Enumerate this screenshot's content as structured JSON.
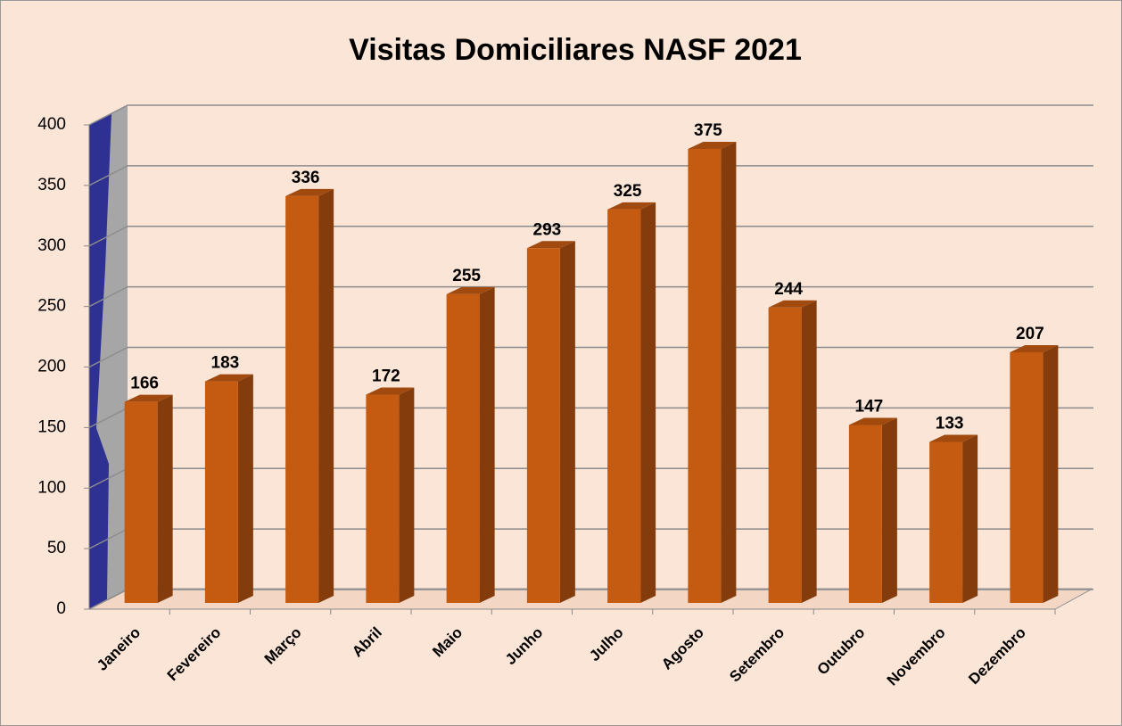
{
  "chart_data": {
    "type": "bar",
    "title": "Visitas Domiciliares NASF 2021",
    "categories": [
      "Janeiro",
      "Fevereiro",
      "Março",
      "Abril",
      "Maio",
      "Junho",
      "Julho",
      "Agosto",
      "Setembro",
      "Outubro",
      "Novembro",
      "Dezembro"
    ],
    "values": [
      166,
      183,
      336,
      172,
      255,
      293,
      325,
      375,
      244,
      147,
      133,
      207
    ],
    "color": "#c55a11",
    "ylim": [
      0,
      400
    ],
    "yticks": [
      0,
      50,
      100,
      150,
      200,
      250,
      300,
      350,
      400
    ],
    "grid": true
  }
}
